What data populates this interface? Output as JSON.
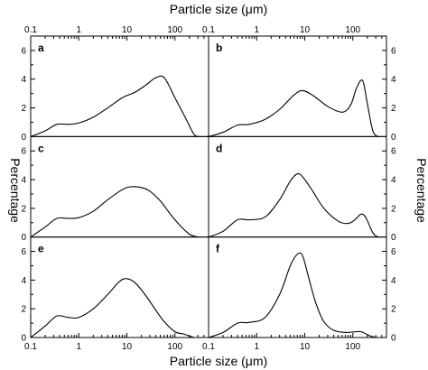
{
  "figure": {
    "top_xlabel": "Particle size (μm)",
    "bottom_xlabel": "Particle size (μm)",
    "left_ylabel": "Percentage",
    "right_ylabel": "Percentage"
  },
  "chart_data": [
    {
      "type": "line",
      "panel": "a",
      "xscale": "log",
      "xlim": [
        0.1,
        500
      ],
      "ylim": [
        0,
        7
      ],
      "xticks": [
        "0.1",
        "1",
        "10",
        "100"
      ],
      "yticks": [
        "0",
        "2",
        "4",
        "6"
      ],
      "x": [
        0.1,
        0.2,
        0.35,
        0.6,
        1,
        2,
        4,
        8,
        15,
        25,
        40,
        60,
        100,
        160,
        250,
        330
      ],
      "y": [
        0,
        0.4,
        0.85,
        0.85,
        0.95,
        1.35,
        2.0,
        2.7,
        3.1,
        3.6,
        4.1,
        4.1,
        2.7,
        1.4,
        0.15,
        0
      ]
    },
    {
      "type": "line",
      "panel": "b",
      "xscale": "log",
      "xlim": [
        0.1,
        500
      ],
      "ylim": [
        0,
        7
      ],
      "xticks": [
        "0.1",
        "1",
        "10",
        "100"
      ],
      "yticks": [
        "0",
        "2",
        "4",
        "6"
      ],
      "x": [
        0.1,
        0.2,
        0.4,
        0.7,
        1.5,
        3,
        6,
        9,
        15,
        30,
        60,
        90,
        120,
        160,
        200,
        260,
        330
      ],
      "y": [
        0,
        0.3,
        0.8,
        0.85,
        1.2,
        1.9,
        2.9,
        3.2,
        2.85,
        2.1,
        1.7,
        2.2,
        3.4,
        3.9,
        2.3,
        0.4,
        0
      ]
    },
    {
      "type": "line",
      "panel": "c",
      "xscale": "log",
      "xlim": [
        0.1,
        500
      ],
      "ylim": [
        0,
        7
      ],
      "xticks": [
        "0.1",
        "1",
        "10",
        "100"
      ],
      "yticks": [
        "0",
        "2",
        "4",
        "6"
      ],
      "x": [
        0.1,
        0.2,
        0.35,
        0.6,
        1,
        2,
        4,
        8,
        12,
        20,
        30,
        50,
        80,
        120,
        200,
        300
      ],
      "y": [
        0,
        0.7,
        1.3,
        1.3,
        1.35,
        1.8,
        2.6,
        3.3,
        3.5,
        3.45,
        3.2,
        2.5,
        1.6,
        0.9,
        0.2,
        0
      ]
    },
    {
      "type": "line",
      "panel": "d",
      "xscale": "log",
      "xlim": [
        0.1,
        500
      ],
      "ylim": [
        0,
        7
      ],
      "xticks": [
        "0.1",
        "1",
        "10",
        "100"
      ],
      "yticks": [
        "0",
        "2",
        "4",
        "6"
      ],
      "x": [
        0.1,
        0.2,
        0.4,
        0.7,
        1.5,
        3,
        5,
        7,
        9,
        14,
        25,
        50,
        80,
        110,
        150,
        190,
        260,
        330
      ],
      "y": [
        0,
        0.4,
        1.2,
        1.2,
        1.4,
        2.6,
        3.9,
        4.4,
        4.2,
        3.3,
        2.0,
        1.1,
        0.95,
        1.2,
        1.6,
        1.3,
        0.3,
        0
      ]
    },
    {
      "type": "line",
      "panel": "e",
      "xscale": "log",
      "xlim": [
        0.1,
        500
      ],
      "ylim": [
        0,
        7
      ],
      "xticks": [
        "0.1",
        "1",
        "10",
        "100"
      ],
      "yticks": [
        "0",
        "2",
        "4",
        "6"
      ],
      "x": [
        0.1,
        0.2,
        0.35,
        0.6,
        1,
        2,
        4,
        7,
        10,
        15,
        25,
        40,
        60,
        100,
        150,
        200,
        250
      ],
      "y": [
        0,
        0.8,
        1.5,
        1.4,
        1.4,
        2.0,
        3.0,
        3.9,
        4.1,
        3.8,
        2.9,
        1.9,
        1.1,
        0.4,
        0.25,
        0.1,
        0
      ]
    },
    {
      "type": "line",
      "panel": "f",
      "xscale": "log",
      "xlim": [
        0.1,
        500
      ],
      "ylim": [
        0,
        7
      ],
      "xticks": [
        "0.1",
        "1",
        "10",
        "100"
      ],
      "yticks": [
        "0",
        "2",
        "4",
        "6"
      ],
      "x": [
        0.1,
        0.2,
        0.4,
        0.7,
        1.5,
        3,
        5,
        7,
        9,
        12,
        17,
        25,
        40,
        70,
        110,
        150,
        200,
        260,
        330
      ],
      "y": [
        0,
        0.35,
        1.0,
        1.05,
        1.4,
        3.0,
        5.0,
        5.8,
        5.7,
        4.2,
        2.4,
        1.1,
        0.5,
        0.35,
        0.4,
        0.4,
        0.2,
        0.05,
        0
      ]
    }
  ]
}
